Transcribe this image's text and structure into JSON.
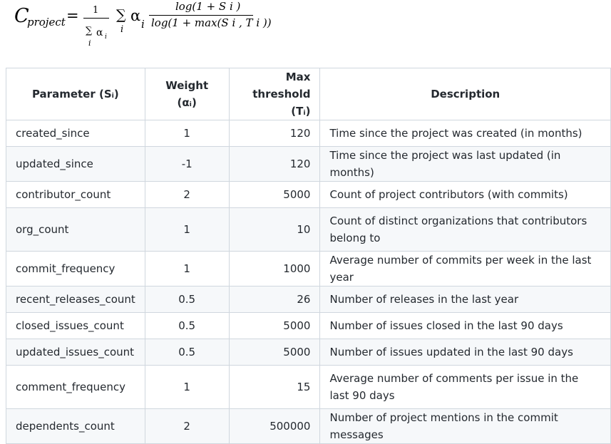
{
  "formula": {
    "lhs": "C",
    "lhs_subscript": "project",
    "equals": "=",
    "fraction_numerator": "1",
    "denominator_sigma": "∑",
    "denominator_alpha": "α",
    "denominator_alpha_index": "i",
    "denominator_sum_index": "i",
    "sum_symbol": "∑",
    "sum_index": "i",
    "alpha": "α",
    "alpha_index": "i",
    "log_numerator": "log(1 + S i )",
    "log_denominator": "log(1 + max(S i ,  T i ))"
  },
  "table": {
    "headers": {
      "parameter": "Parameter (Sᵢ)",
      "weight_line1": "Weight",
      "weight_line2": "(αᵢ)",
      "threshold_line1": "Max threshold",
      "threshold_line2": "(Tᵢ)",
      "description": "Description"
    },
    "rows": [
      {
        "parameter": "created_since",
        "weight": "1",
        "threshold": "120",
        "description": "Time since the project was created (in months)"
      },
      {
        "parameter": "updated_since",
        "weight": "-1",
        "threshold": "120",
        "description": "Time since the project was last updated (in months)"
      },
      {
        "parameter": "contributor_count",
        "weight": "2",
        "threshold": "5000",
        "description": "Count of project contributors (with commits)"
      },
      {
        "parameter": "org_count",
        "weight": "1",
        "threshold": "10",
        "description": "Count of distinct organizations that contributors belong to"
      },
      {
        "parameter": "commit_frequency",
        "weight": "1",
        "threshold": "1000",
        "description": "Average number of commits per week in the last year"
      },
      {
        "parameter": "recent_releases_count",
        "weight": "0.5",
        "threshold": "26",
        "description": "Number of releases in the last year"
      },
      {
        "parameter": "closed_issues_count",
        "weight": "0.5",
        "threshold": "5000",
        "description": "Number of issues closed in the last 90 days"
      },
      {
        "parameter": "updated_issues_count",
        "weight": "0.5",
        "threshold": "5000",
        "description": "Number of issues updated in the last 90 days"
      },
      {
        "parameter": "comment_frequency",
        "weight": "1",
        "threshold": "15",
        "description": "Average number of comments per issue in the last 90 days"
      },
      {
        "parameter": "dependents_count",
        "weight": "2",
        "threshold": "500000",
        "description": "Number of project mentions in the commit messages"
      }
    ]
  }
}
